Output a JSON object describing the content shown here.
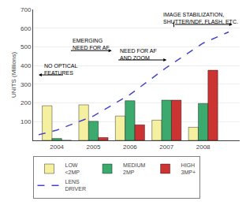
{
  "chart_data": {
    "type": "bar",
    "x": [
      2004,
      2005,
      2006,
      2007,
      2008
    ],
    "series": [
      {
        "name": "LOW\n<2MP",
        "color": "#F5F0A0",
        "values": [
          185,
          190,
          130,
          108,
          70
        ]
      },
      {
        "name": "MEDIUM\n2MP",
        "color": "#3DAA6D",
        "values": [
          10,
          102,
          212,
          215,
          197
        ]
      },
      {
        "name": "HIGH\n3MP+",
        "color": "#CC3333",
        "values": [
          0,
          15,
          83,
          215,
          375
        ]
      },
      {
        "name": "LENS\nDRIVER",
        "type": "line",
        "line_style": "dashed",
        "color": "#4444CC",
        "x": [
          2003.5,
          2004,
          2005,
          2006,
          2007,
          2008,
          2008.7
        ],
        "values": [
          30,
          55,
          130,
          245,
          390,
          520,
          580
        ]
      }
    ],
    "ylabel": "UNITS (Millions)",
    "xlim": [
      2003.35,
      2009.0
    ],
    "xticks": [
      2004,
      2005,
      2006,
      2007,
      2008
    ],
    "ylim": [
      0,
      700
    ],
    "yticks": [
      100,
      200,
      300,
      400,
      500,
      600,
      700
    ],
    "grid": true,
    "legend": "bottom",
    "annotations": [
      {
        "text": "NO OPTICAL\nFEATURES"
      },
      {
        "text": "EMERGING\nNEED FOR AF"
      },
      {
        "text": "NEED FOR AF\nAND ZOOM"
      },
      {
        "text": "IMAGE STABILIZATION,\nSHUTTER/NDF, FLASH, ETC."
      }
    ]
  }
}
